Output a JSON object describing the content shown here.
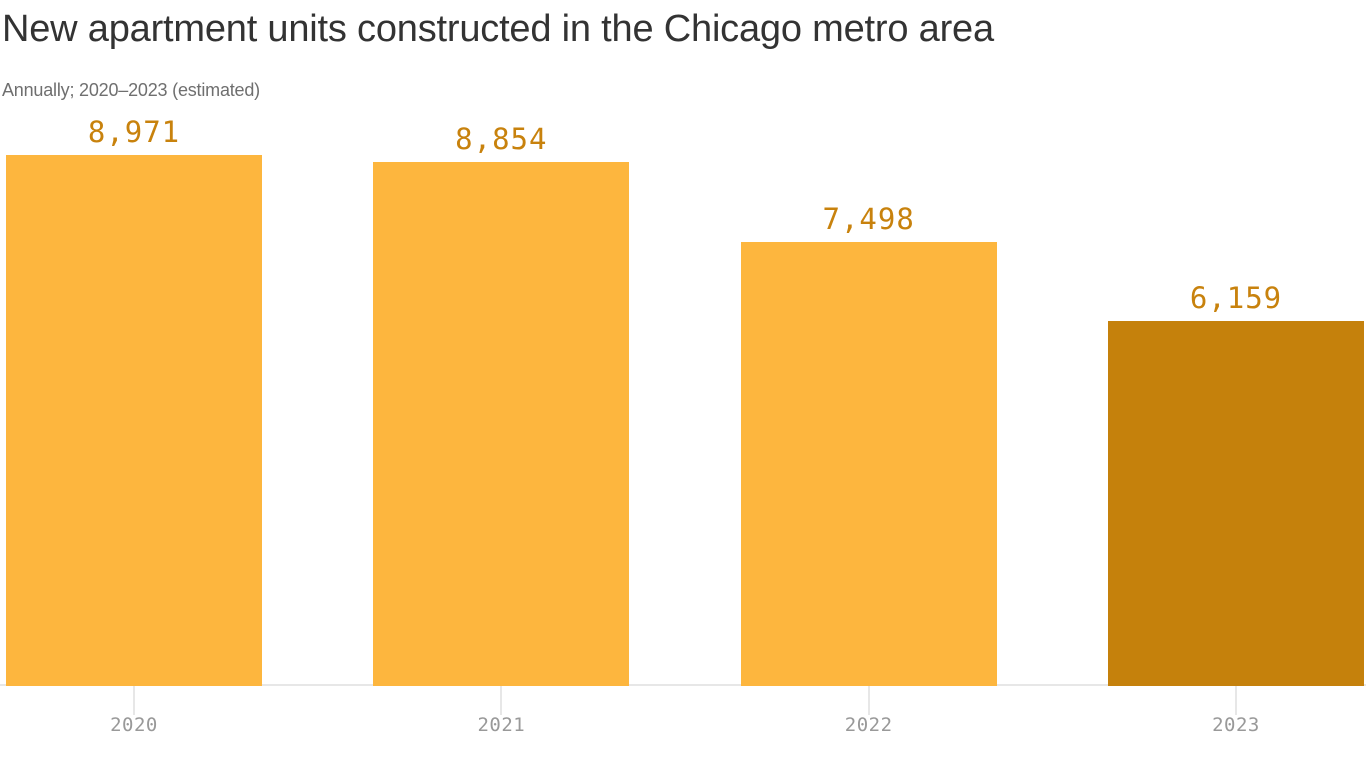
{
  "header": {
    "title": "New apartment units constructed in the Chicago metro area",
    "subtitle": "Annually; 2020–2023 (estimated)"
  },
  "chart_data": {
    "type": "bar",
    "title": "New apartment units constructed in the Chicago metro area",
    "subtitle": "Annually; 2020–2023 (estimated)",
    "categories": [
      "2020",
      "2021",
      "2022",
      "2023"
    ],
    "values": [
      8971,
      8854,
      7498,
      6159
    ],
    "value_labels": [
      "8,971",
      "8,854",
      "7,498",
      "6,159"
    ],
    "highlighted_category": "2023",
    "xlabel": "",
    "ylabel": "",
    "ylim": [
      0,
      8971
    ],
    "grid": false,
    "legend": false,
    "orientation": "vertical",
    "colors": {
      "bar": "#FDB63E",
      "bar_highlight": "#C5810C",
      "value_label": "#C8820D",
      "axis_label": "#999999",
      "axis_line": "#E7E7E7",
      "title": "#333333",
      "subtitle": "#6F6F6F"
    }
  }
}
